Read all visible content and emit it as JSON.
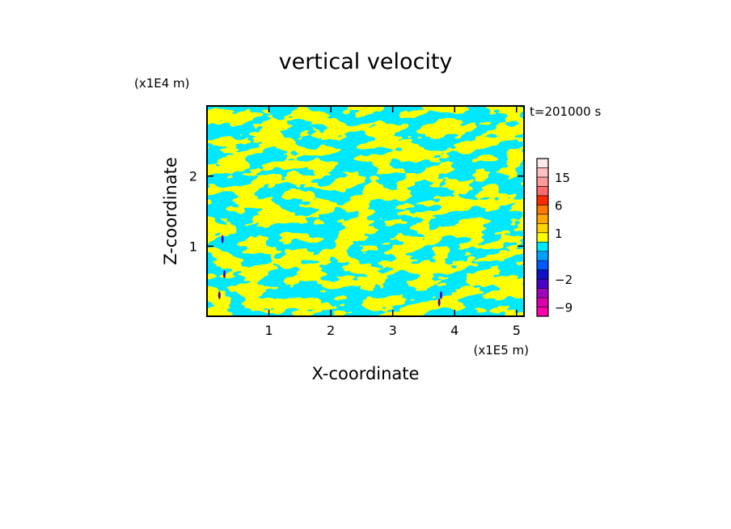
{
  "chart_data": {
    "type": "heatmap",
    "title": "vertical velocity",
    "time_label": "t=201000 s",
    "xlabel": "X-coordinate",
    "ylabel": "Z-coordinate",
    "x_scale_label": "(x1E5 m)",
    "y_scale_label": "(x1E4 m)",
    "xlim": [
      0,
      5.12
    ],
    "ylim": [
      0,
      3.0
    ],
    "x_ticks": [
      1,
      2,
      3,
      4,
      5
    ],
    "y_ticks": [
      1,
      2
    ],
    "colorbar": {
      "levels": [
        -12,
        -9,
        -6,
        -3,
        -2,
        -1,
        -0.5,
        0,
        0.5,
        1,
        2,
        3,
        6,
        9,
        12,
        15,
        18,
        24
      ],
      "colors": [
        "#ff00aa",
        "#dd00aa",
        "#a000c0",
        "#4b00c8",
        "#1010c8",
        "#0058ff",
        "#00a0ff",
        "#00e8ff",
        "#ffff00",
        "#ffd400",
        "#ffaa00",
        "#ff7a00",
        "#ff2a00",
        "#ff6a6a",
        "#ff9a9a",
        "#ffc0c0",
        "#ffe8e8"
      ],
      "tick_labels": [
        "15",
        "6",
        "1",
        "−2",
        "−9"
      ],
      "tick_values": [
        15,
        6,
        1,
        -2,
        -9
      ]
    },
    "dominant_colors": {
      "positive": "#ffff00",
      "negative": "#00e8ff"
    },
    "grid": false,
    "legend": "colorbar-right"
  }
}
